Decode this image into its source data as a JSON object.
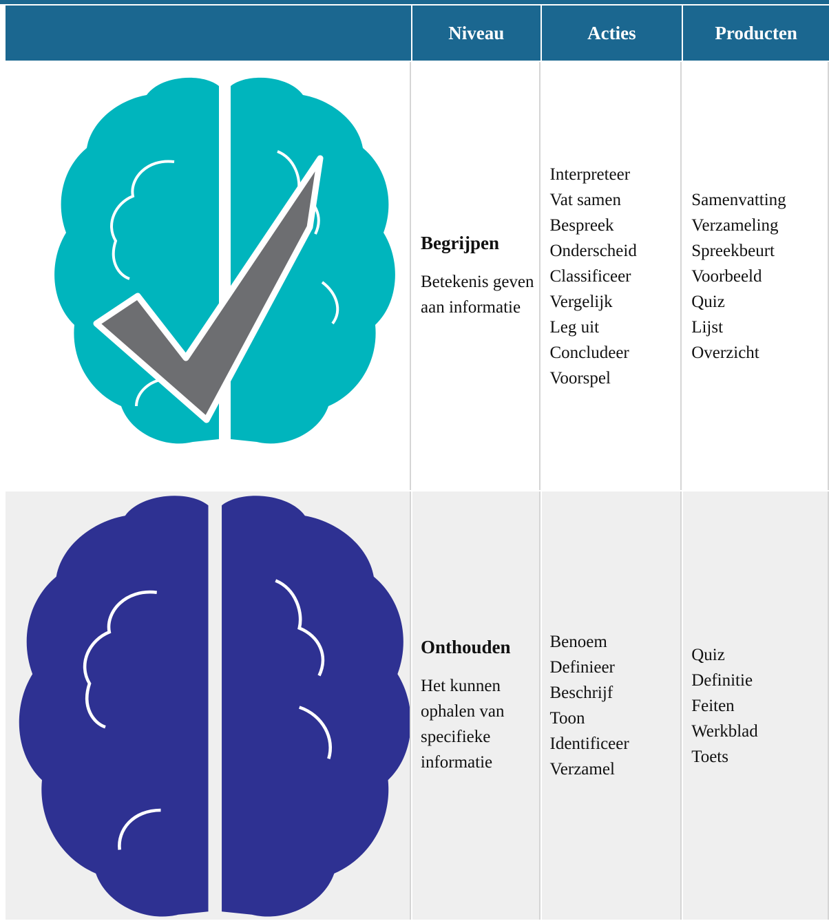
{
  "header": [
    "Niveau",
    "Acties",
    "Producten"
  ],
  "rows": [
    {
      "level": "Begrijpen",
      "description": "Betekenis geven aan informatie",
      "actions": [
        "Interpreteer",
        "Vat samen",
        "Bespreek",
        "Onderscheid",
        "Classificeer",
        "Vergelijk",
        "Leg uit",
        "Concludeer",
        "Voorspel"
      ],
      "products": [
        "Samenvatting",
        "Verzameling",
        "Spreekbeurt",
        "Voorbeeld",
        "Quiz",
        "Lijst",
        "Overzicht"
      ]
    },
    {
      "level": "Onthouden",
      "description": "Het kunnen ophalen van specifieke informatie",
      "actions": [
        "Benoem",
        "Definieer",
        "Beschrijf",
        "Toon",
        "Identificeer",
        "Verzamel"
      ],
      "products": [
        "Quiz",
        "Definitie",
        "Feiten",
        "Werkblad",
        "Toets"
      ]
    }
  ]
}
